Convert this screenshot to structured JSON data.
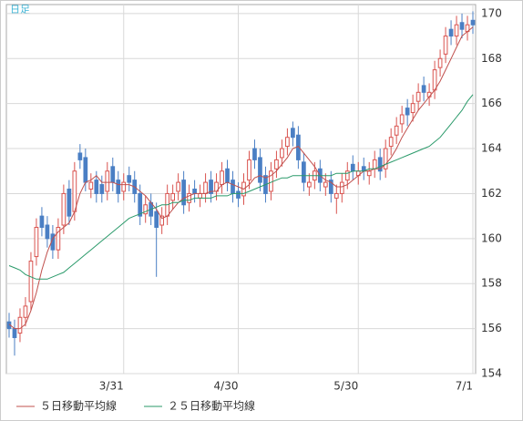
{
  "chart_data": {
    "type": "candlestick",
    "title": "日足",
    "open": [
      156.3,
      156,
      155.8,
      156.5,
      157.2,
      159.2,
      161,
      160.6,
      160.2,
      159.5,
      160.6,
      162.2,
      161.2,
      163.8,
      163.6,
      162.2,
      162.6,
      162.4,
      162.1,
      163.2,
      162.6,
      162.1,
      162.8,
      162.6,
      162,
      161.1,
      161.6,
      161.2,
      160.6,
      161,
      161.7,
      162.1,
      162.6,
      161.6,
      162.2,
      161.8,
      162,
      162.6,
      162.1,
      162.4,
      163.1,
      162.6,
      162.1,
      161.9,
      162.6,
      164,
      163.6,
      162.8,
      162.1,
      163.1,
      163.6,
      164.1,
      164.9,
      164.6,
      163.4,
      162.3,
      162.6,
      163.1,
      162.3,
      162.6,
      161.8,
      162,
      162.6,
      163.3,
      162.8,
      163.2,
      162.8,
      163.1,
      163.6,
      163.1,
      164.1,
      164.6,
      165.1,
      165.8,
      165.6,
      166.1,
      166.8,
      166.3,
      166.6,
      167.6,
      168.2,
      169.3,
      169,
      169.6,
      169.2,
      169.7
    ],
    "high": [
      156.7,
      156.4,
      156.9,
      157.4,
      159.4,
      160.9,
      161.4,
      161,
      160.6,
      160.9,
      162.4,
      162.6,
      163.4,
      164.2,
      164,
      162.9,
      163,
      162.8,
      163.4,
      163.6,
      163,
      162.9,
      163.2,
      163,
      162.4,
      161.9,
      162,
      161.6,
      161.4,
      162.4,
      162.4,
      162.9,
      163,
      162.4,
      162.6,
      162.4,
      162.9,
      163,
      162.9,
      163.4,
      163.5,
      163,
      162.5,
      162.9,
      163.9,
      164.4,
      164,
      163.2,
      163.4,
      163.9,
      164.4,
      164.9,
      165.2,
      165,
      163.8,
      162.9,
      163.4,
      163.5,
      162.9,
      163,
      162.4,
      162.9,
      163.4,
      163.7,
      163.4,
      163.6,
      163.4,
      163.9,
      164,
      164.4,
      164.9,
      165.4,
      165.9,
      166.2,
      166.4,
      166.9,
      167.2,
      166.9,
      167.9,
      168.4,
      169.4,
      169.7,
      169.9,
      170,
      169.9,
      170.1
    ],
    "low": [
      155.6,
      154.8,
      155.4,
      156.1,
      156.8,
      158.8,
      160.1,
      159.6,
      159.1,
      159.1,
      160.2,
      160.6,
      160.8,
      163.1,
      162.1,
      161.8,
      161.6,
      161.6,
      161.7,
      162.1,
      161.6,
      161.7,
      162.1,
      161.6,
      160.6,
      160.7,
      160.6,
      158.3,
      160.2,
      160.6,
      161.3,
      161.7,
      161.1,
      161.2,
      161.6,
      161.4,
      161.6,
      161.6,
      161.7,
      162,
      162.1,
      161.6,
      161.4,
      161.5,
      162.2,
      163.1,
      162.1,
      161.6,
      161.7,
      162.7,
      163.2,
      163.7,
      164.1,
      163.1,
      162.1,
      161.9,
      162.2,
      162.1,
      161.9,
      161.6,
      161.1,
      161.6,
      162.2,
      162.6,
      162.4,
      162.6,
      162.4,
      162.7,
      162.6,
      162.7,
      163.7,
      164.2,
      164.7,
      165,
      165.2,
      165.7,
      166.1,
      165.9,
      166.2,
      167.2,
      167.8,
      168.6,
      168.6,
      168.9,
      168.8,
      169.1
    ],
    "close": [
      156,
      155.6,
      156.5,
      157,
      159,
      160.5,
      160.5,
      160,
      159.5,
      160.5,
      162,
      161,
      163,
      163.5,
      162.5,
      162.5,
      162,
      162,
      163,
      162.5,
      162,
      162.5,
      162.5,
      162,
      161,
      161.5,
      161,
      160.5,
      161,
      162,
      162,
      162.5,
      161.5,
      162,
      162,
      162,
      162.5,
      162,
      162.5,
      163,
      162.5,
      162,
      161.8,
      162.5,
      163.5,
      163.5,
      162.5,
      162,
      163,
      163.5,
      164,
      164.5,
      164.5,
      163.5,
      162.5,
      162.5,
      163,
      162.5,
      162.5,
      162,
      162,
      162.5,
      163,
      163,
      163,
      163,
      163,
      163.5,
      163,
      164,
      164.5,
      165,
      165.5,
      165.5,
      166,
      166.5,
      166.5,
      166.5,
      167.5,
      168,
      169,
      169,
      169.5,
      169.3,
      169.5,
      169.5
    ],
    "up_color": "#d9534f",
    "down_color": "#4a7fc4",
    "series": [
      {
        "name": "５日移動平均線",
        "color": "#c0504d",
        "values": [
          156.2,
          156,
          156,
          156.2,
          156.8,
          157.6,
          158.6,
          159.4,
          160,
          160.3,
          160.5,
          160.7,
          161.2,
          162,
          162.5,
          162.6,
          162.8,
          162.5,
          162.5,
          162.5,
          162.4,
          162.4,
          162.4,
          162.3,
          162.1,
          161.9,
          161.6,
          161.3,
          160.9,
          161,
          161.3,
          161.6,
          161.8,
          161.9,
          162,
          162,
          162,
          162.1,
          162.1,
          162.4,
          162.5,
          162.4,
          162.3,
          162.2,
          162.4,
          162.7,
          162.8,
          162.7,
          162.8,
          163,
          163.3,
          163.6,
          164,
          164.1,
          163.8,
          163.5,
          163.2,
          162.8,
          162.6,
          162.5,
          162.3,
          162.3,
          162.4,
          162.6,
          162.8,
          163,
          163,
          163.1,
          163.1,
          163.3,
          163.6,
          164,
          164.5,
          164.9,
          165.3,
          165.7,
          166,
          166.3,
          166.6,
          167,
          167.5,
          168,
          168.5,
          169,
          169.2,
          169.4
        ]
      },
      {
        "name": "２５日移動平均線",
        "color": "#2a9a6a",
        "values": [
          158.8,
          158.7,
          158.6,
          158.4,
          158.3,
          158.2,
          158.2,
          158.2,
          158.3,
          158.4,
          158.5,
          158.7,
          158.9,
          159.1,
          159.3,
          159.5,
          159.7,
          159.9,
          160.1,
          160.3,
          160.5,
          160.7,
          160.9,
          161,
          161.1,
          161.2,
          161.3,
          161.4,
          161.5,
          161.5,
          161.6,
          161.6,
          161.7,
          161.7,
          161.8,
          161.8,
          161.8,
          161.8,
          161.9,
          161.9,
          161.9,
          162,
          162,
          162,
          162.1,
          162.2,
          162.3,
          162.4,
          162.5,
          162.6,
          162.7,
          162.7,
          162.8,
          162.8,
          162.8,
          162.8,
          162.8,
          162.8,
          162.8,
          162.8,
          162.9,
          162.9,
          162.9,
          163,
          163,
          163,
          163.1,
          163.1,
          163.2,
          163.3,
          163.4,
          163.5,
          163.6,
          163.7,
          163.8,
          163.9,
          164,
          164.1,
          164.3,
          164.5,
          164.8,
          165.1,
          165.4,
          165.7,
          166.1,
          166.4
        ]
      }
    ],
    "xlim": [
      -0.5,
      85.5
    ],
    "xticks": [
      {
        "value": 21,
        "label": "3/31"
      },
      {
        "value": 42,
        "label": "4/30"
      },
      {
        "value": 64,
        "label": "5/30"
      },
      {
        "value": 85,
        "label": "7/1"
      }
    ],
    "ylim": [
      154,
      170.4
    ],
    "yticks": [
      154,
      156,
      158,
      160,
      162,
      164,
      166,
      168,
      170
    ],
    "grid": true
  }
}
